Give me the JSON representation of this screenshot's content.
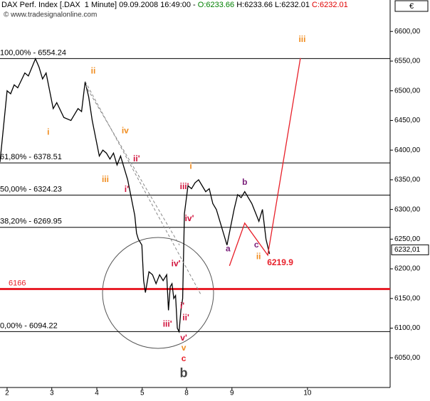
{
  "chart_data": {
    "type": "line",
    "header": [
      {
        "text": "DAX Perf. Index [.DAX  1 Minute] 09.09.2008 16:49:00 - ",
        "color": "#000000"
      },
      {
        "text": "O:6233.66",
        "color": "#008000"
      },
      {
        "text": " H:6233.66 L:6232.01 ",
        "color": "#000000"
      },
      {
        "text": "C:6232.01",
        "color": "#e00000"
      }
    ],
    "currency": "€",
    "watermark": "© www.tradesignalonline.com",
    "xlim": [
      0,
      110
    ],
    "ylim": [
      6000,
      6653
    ],
    "xticks": [
      {
        "value": 2,
        "label": "2"
      },
      {
        "value": 14.6,
        "label": "3"
      },
      {
        "value": 27.3,
        "label": "4"
      },
      {
        "value": 40.1,
        "label": "5"
      },
      {
        "value": 52.6,
        "label": "8"
      },
      {
        "value": 65.4,
        "label": "9"
      },
      {
        "value": 86.7,
        "label": "10"
      }
    ],
    "yticks": [
      {
        "value": 6050,
        "label": "6050,00"
      },
      {
        "value": 6100,
        "label": "6100,00"
      },
      {
        "value": 6150,
        "label": "6150,00"
      },
      {
        "value": 6200,
        "label": "6200,00"
      },
      {
        "value": 6250,
        "label": "6250,00"
      },
      {
        "value": 6300,
        "label": "6300,00"
      },
      {
        "value": 6350,
        "label": "6350,00"
      },
      {
        "value": 6400,
        "label": "6400,00"
      },
      {
        "value": 6450,
        "label": "6450,00"
      },
      {
        "value": 6500,
        "label": "6500,00"
      },
      {
        "value": 6550,
        "label": "6550,00"
      },
      {
        "value": 6600,
        "label": "6600,00"
      }
    ],
    "levels": [
      {
        "value": 6554.24,
        "label": "100,00% - 6554.24",
        "color": "#000000",
        "width": 1
      },
      {
        "value": 6378.51,
        "label": "61,80% - 6378.51",
        "color": "#000000",
        "width": 1
      },
      {
        "value": 6324.23,
        "label": "50,00% - 6324.23",
        "color": "#000000",
        "width": 1
      },
      {
        "value": 6269.95,
        "label": "38,20% - 6269.95",
        "color": "#000000",
        "width": 1
      },
      {
        "value": 6166,
        "label": "6166",
        "color": "#e8202a",
        "width": 3
      },
      {
        "value": 6094.22,
        "label": "0,00% - 6094.22",
        "color": "#000000",
        "width": 1
      }
    ],
    "last": {
      "value": 6232.01,
      "label": "6232,01"
    },
    "series": [
      {
        "color": "#000000",
        "dash": false,
        "x": [
          0,
          1,
          2,
          3,
          4,
          5,
          7,
          8,
          10,
          11,
          12,
          13,
          14,
          15,
          16,
          18,
          20,
          21,
          22,
          23,
          24,
          25,
          26,
          27,
          28,
          29,
          30,
          31,
          32,
          33,
          34,
          35,
          36,
          37,
          38,
          38.5,
          39,
          40,
          40.5,
          41,
          42,
          43,
          44,
          45,
          46,
          47,
          47.5,
          48,
          48.5,
          49,
          49.5,
          50,
          50.5,
          51,
          51.5,
          52,
          53,
          54,
          55,
          56,
          57,
          58,
          59,
          60,
          61,
          62,
          63,
          64,
          65,
          66,
          67,
          68,
          69,
          70,
          71,
          72,
          73,
          74,
          75,
          76
        ],
        "values": [
          6380,
          6440,
          6500,
          6495,
          6510,
          6505,
          6530,
          6525,
          6554,
          6540,
          6520,
          6530,
          6500,
          6470,
          6480,
          6455,
          6450,
          6460,
          6470,
          6465,
          6515,
          6490,
          6450,
          6420,
          6390,
          6400,
          6395,
          6385,
          6395,
          6375,
          6390,
          6370,
          6350,
          6320,
          6290,
          6260,
          6250,
          6240,
          6180,
          6160,
          6195,
          6190,
          6175,
          6190,
          6180,
          6190,
          6130,
          6170,
          6175,
          6150,
          6155,
          6100,
          6094,
          6130,
          6150,
          6293,
          6340,
          6335,
          6345,
          6350,
          6340,
          6330,
          6335,
          6310,
          6300,
          6280,
          6260,
          6240,
          6270,
          6300,
          6325,
          6320,
          6330,
          6320,
          6310,
          6295,
          6280,
          6300,
          6250,
          6225
        ]
      },
      {
        "color": "#e8202a",
        "dash": false,
        "x": [
          64.7,
          69,
          75.5,
          84.7
        ],
        "values": [
          6205,
          6277,
          6223,
          6555
        ]
      },
      {
        "color": "#888888",
        "dash": true,
        "x": [
          24,
          56.6
        ],
        "values": [
          6516,
          6157
        ]
      },
      {
        "color": "#888888",
        "dash": true,
        "x": [
          24,
          50.6
        ],
        "values": [
          6510,
          6240
        ]
      }
    ],
    "annotations": [
      {
        "text": "i",
        "x": 13.6,
        "y": 6430,
        "color": "#f08c1e"
      },
      {
        "text": "ii",
        "x": 26.3,
        "y": 6533,
        "color": "#f08c1e"
      },
      {
        "text": "iii",
        "x": 29.7,
        "y": 6350,
        "color": "#f08c1e"
      },
      {
        "text": "iv",
        "x": 35.3,
        "y": 6432,
        "color": "#f08c1e"
      },
      {
        "text": "ii'",
        "x": 38.5,
        "y": 6385,
        "color": "#d0103a"
      },
      {
        "text": "i'",
        "x": 35.7,
        "y": 6333,
        "color": "#d0103a"
      },
      {
        "text": "iii'",
        "x": 52,
        "y": 6338,
        "color": "#d0103a"
      },
      {
        "text": "i",
        "x": 53.8,
        "y": 6372,
        "color": "#f08c1e"
      },
      {
        "text": "iv'",
        "x": 53.4,
        "y": 6284,
        "color": "#d0103a"
      },
      {
        "text": "b",
        "x": 69,
        "y": 6345,
        "color": "#7a1f7a"
      },
      {
        "text": "a",
        "x": 64.3,
        "y": 6233,
        "color": "#7a1f7a"
      },
      {
        "text": "c",
        "x": 72.3,
        "y": 6240,
        "color": "#7a1f7a"
      },
      {
        "text": "ii",
        "x": 72.9,
        "y": 6220,
        "color": "#f08c1e"
      },
      {
        "text": "6219.9",
        "x": 79,
        "y": 6210,
        "color": "#e8202a"
      },
      {
        "text": "iii",
        "x": 85.2,
        "y": 6586,
        "color": "#f08c1e"
      },
      {
        "text": "iv'",
        "x": 49.6,
        "y": 6208,
        "color": "#d0103a"
      },
      {
        "text": "i'",
        "x": 51.4,
        "y": 6137,
        "color": "#d0103a"
      },
      {
        "text": "ii'",
        "x": 52.4,
        "y": 6117,
        "color": "#d0103a"
      },
      {
        "text": "iii'",
        "x": 47.2,
        "y": 6106,
        "color": "#d0103a"
      },
      {
        "text": "v'",
        "x": 51.8,
        "y": 6083,
        "color": "#d0103a"
      },
      {
        "text": "v",
        "x": 51.8,
        "y": 6066,
        "color": "#f08c1e"
      },
      {
        "text": "c",
        "x": 51.8,
        "y": 6048,
        "color": "#e8202a"
      },
      {
        "text": "b",
        "x": 51.8,
        "y": 6023,
        "color": "#444444"
      }
    ]
  }
}
